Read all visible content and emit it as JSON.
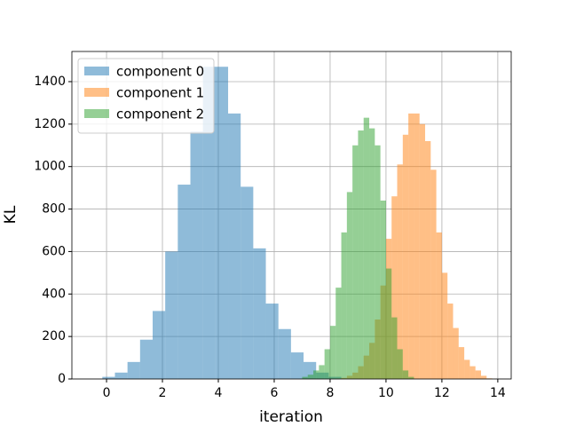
{
  "chart_data": {
    "type": "histogram",
    "xlabel": "iteration",
    "ylabel": "KL",
    "xlim": [
      -1.24,
      14.48
    ],
    "ylim": [
      0,
      1542
    ],
    "xticks": [
      0,
      2,
      4,
      6,
      8,
      10,
      12,
      14
    ],
    "yticks": [
      0,
      200,
      400,
      600,
      800,
      1000,
      1200,
      1400
    ],
    "grid": true,
    "legend": "upper left",
    "series": [
      {
        "name": "component 0",
        "color": "#1f77b4",
        "bins": [
          -0.15,
          0.3,
          0.75,
          1.2,
          1.65,
          2.1,
          2.55,
          3.0,
          3.45,
          3.9,
          4.35,
          4.8,
          5.25,
          5.7,
          6.15,
          6.6,
          7.05,
          7.5,
          7.95,
          8.4
        ],
        "values": [
          10,
          30,
          80,
          185,
          320,
          600,
          915,
          1165,
          1470,
          1470,
          1250,
          905,
          615,
          355,
          235,
          125,
          80,
          30,
          10
        ]
      },
      {
        "name": "component 1",
        "color": "#ff7f0e",
        "bins": [
          8.2,
          8.4,
          8.6,
          8.8,
          9.0,
          9.2,
          9.4,
          9.6,
          9.8,
          10.0,
          10.2,
          10.4,
          10.6,
          10.8,
          11.0,
          11.2,
          11.4,
          11.6,
          11.8,
          12.0,
          12.2,
          12.4,
          12.6,
          12.8,
          13.0,
          13.2,
          13.4,
          13.6,
          13.8
        ],
        "values": [
          2,
          5,
          15,
          30,
          60,
          110,
          170,
          280,
          440,
          660,
          860,
          1010,
          1150,
          1250,
          1250,
          1200,
          1120,
          985,
          690,
          500,
          355,
          240,
          150,
          90,
          60,
          40,
          15,
          3
        ]
      },
      {
        "name": "component 2",
        "color": "#2ca02c",
        "bins": [
          7.0,
          7.2,
          7.4,
          7.6,
          7.8,
          8.0,
          8.2,
          8.4,
          8.6,
          8.8,
          9.0,
          9.2,
          9.4,
          9.6,
          9.8,
          10.0,
          10.2,
          10.4,
          10.6,
          10.8,
          11.0
        ],
        "values": [
          10,
          20,
          40,
          65,
          140,
          250,
          430,
          690,
          880,
          1100,
          1170,
          1230,
          1180,
          1100,
          840,
          520,
          290,
          140,
          40,
          10
        ]
      }
    ]
  }
}
